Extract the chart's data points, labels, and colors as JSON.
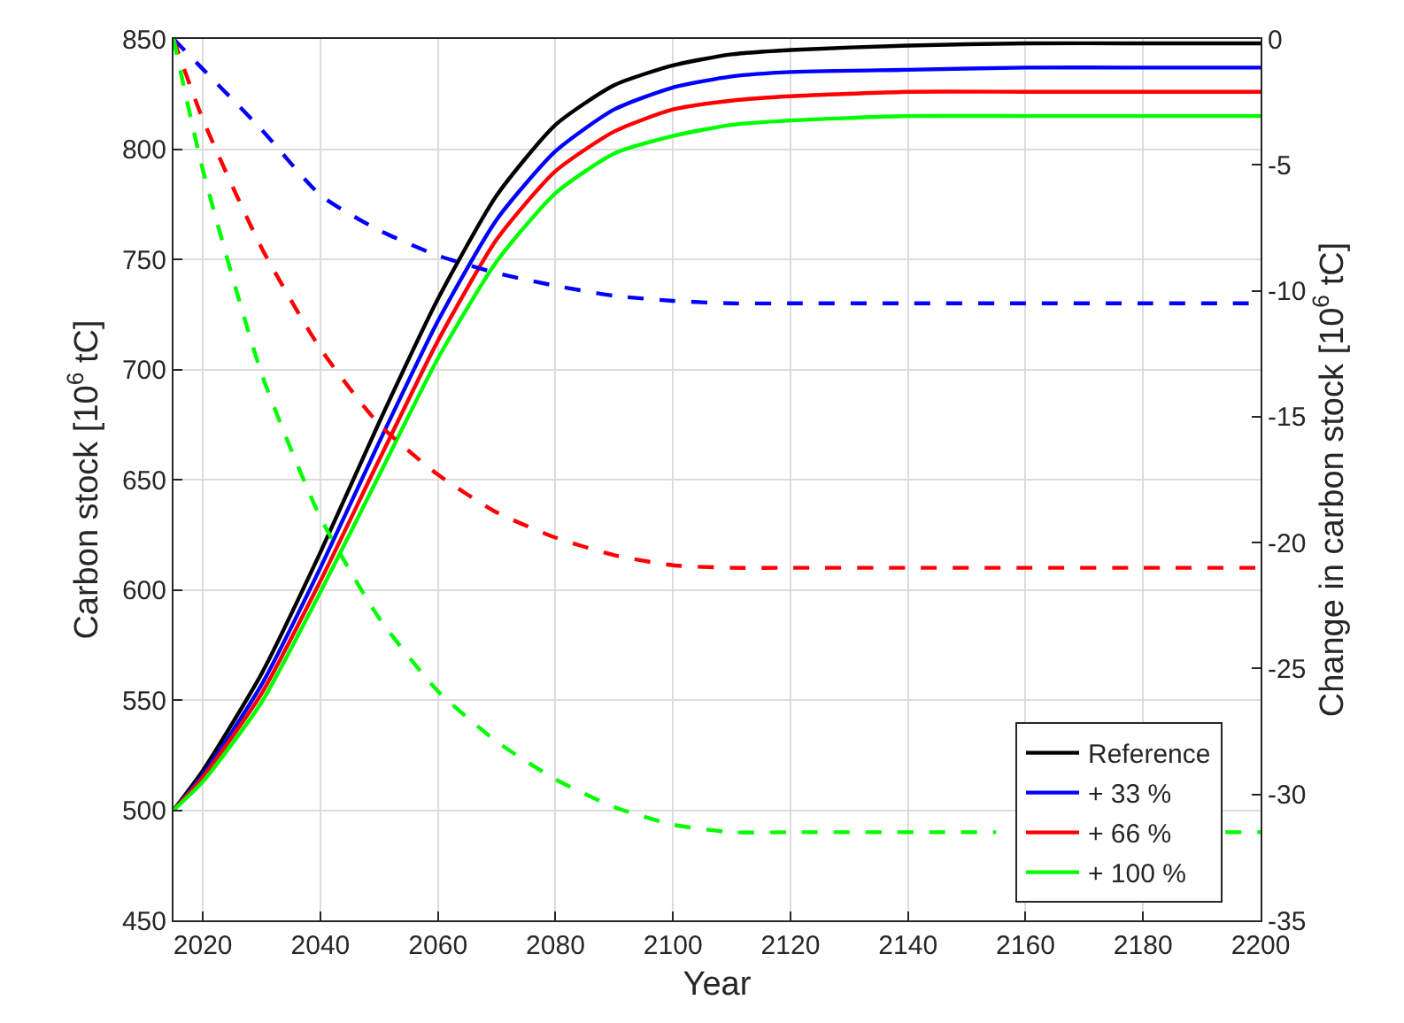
{
  "chart_data": {
    "type": "line",
    "xlabel": "Year",
    "ylabel": "Carbon stock [10$^{6}$ tC]",
    "y2label": "Change in carbon stock [10$^{6}$ tC]",
    "x": [
      2015,
      2020,
      2030,
      2040,
      2050,
      2060,
      2070,
      2080,
      2090,
      2100,
      2110,
      2120,
      2140,
      2160,
      2180,
      2200
    ],
    "series": [
      {
        "name": "Reference",
        "color": "#000000",
        "line_style": "solid",
        "values": [
          500,
          518,
          562,
          617,
          676,
          732,
          779,
          811,
          829,
          838,
          843,
          845,
          847,
          848,
          848,
          848
        ]
      },
      {
        "name": "+ 33 %",
        "color": "#0000ff",
        "line_style": "solid",
        "values": [
          500,
          516,
          557,
          610,
          667,
          722,
          768,
          799,
          818,
          828,
          833,
          835,
          836,
          837,
          837,
          837
        ]
      },
      {
        "name": "+ 66 %",
        "color": "#ff0000",
        "line_style": "solid",
        "values": [
          500,
          515,
          553,
          604,
          659,
          713,
          759,
          790,
          808,
          818,
          822,
          824,
          826,
          826,
          826,
          826
        ]
      },
      {
        "name": "+ 100 %",
        "color": "#00ff00",
        "line_style": "solid",
        "values": [
          500,
          513,
          549,
          599,
          652,
          705,
          749,
          780,
          798,
          806,
          811,
          813,
          815,
          815,
          815,
          815
        ]
      },
      {
        "color": "#0000ff",
        "line_style": "dashed",
        "axis": "y2",
        "values": [
          0,
          -1.2,
          -3.6,
          -6.2,
          -7.6,
          -8.6,
          -9.3,
          -9.8,
          -10.2,
          -10.4,
          -10.5,
          -10.5,
          -10.5,
          -10.5,
          -10.5,
          -10.5
        ]
      },
      {
        "color": "#ff0000",
        "line_style": "dashed",
        "axis": "y2",
        "values": [
          0,
          -3.2,
          -8.3,
          -12.3,
          -15.3,
          -17.3,
          -18.8,
          -19.8,
          -20.5,
          -20.9,
          -21,
          -21,
          -21,
          -21,
          -21,
          -21
        ]
      },
      {
        "color": "#00ff00",
        "line_style": "dashed",
        "axis": "y2",
        "x": [
          2015,
          2020,
          2030,
          2040,
          2050,
          2060,
          2070,
          2080,
          2090,
          2100,
          2110,
          2120,
          2140,
          2155,
          2175,
          2194,
          2200
        ],
        "values": [
          0,
          -5.2,
          -13.3,
          -19,
          -23,
          -25.9,
          -27.9,
          -29.4,
          -30.5,
          -31.2,
          -31.5,
          -31.5,
          -31.5,
          -31.5,
          null,
          -31.5,
          -31.5
        ]
      }
    ],
    "xlim": [
      2015,
      2200
    ],
    "xticks": [
      2020,
      2040,
      2060,
      2080,
      2100,
      2120,
      2140,
      2160,
      2180,
      2200
    ],
    "ylim": [
      450,
      850
    ],
    "yticks": [
      450,
      500,
      550,
      600,
      650,
      700,
      750,
      800,
      850
    ],
    "y2lim": [
      -35,
      0
    ],
    "y2ticks": [
      -35,
      -30,
      -25,
      -20,
      -15,
      -10,
      -5,
      0
    ],
    "grid": true,
    "legend": "bottom right"
  }
}
